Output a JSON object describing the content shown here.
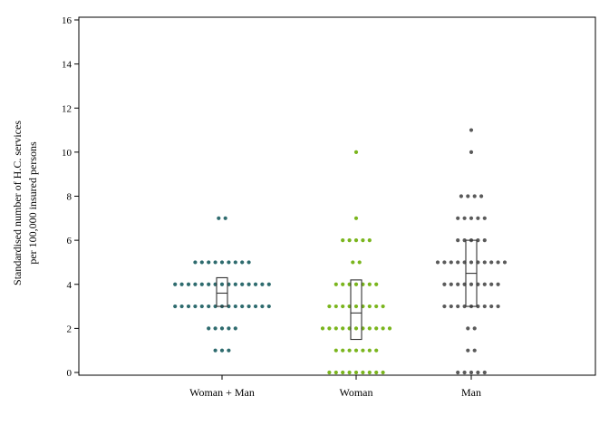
{
  "chart_data": {
    "type": "scatter",
    "subtype": "dot-plot-with-boxplot",
    "title": "",
    "ylabel_lines": [
      "Standardised number of H.C. services",
      "per 100,000 insured persons"
    ],
    "xlabel": "",
    "ylim": [
      0,
      16
    ],
    "yticks": [
      0,
      2,
      4,
      6,
      8,
      10,
      12,
      14,
      16
    ],
    "grid": false,
    "categories": [
      "Woman + Man",
      "Woman",
      "Man"
    ],
    "series": [
      {
        "category": "Woman + Man",
        "color": "#2e6b6e",
        "box": {
          "q1": 3.0,
          "median": 3.6,
          "q3": 4.3
        },
        "dots": [
          {
            "value": 1,
            "count": 3
          },
          {
            "value": 2,
            "count": 5
          },
          {
            "value": 3,
            "count": 15
          },
          {
            "value": 4,
            "count": 15
          },
          {
            "value": 5,
            "count": 9
          },
          {
            "value": 7,
            "count": 2
          }
        ]
      },
      {
        "category": "Woman",
        "color": "#7ab51d",
        "box": {
          "q1": 1.5,
          "median": 2.7,
          "q3": 4.2
        },
        "dots": [
          {
            "value": 0,
            "count": 9
          },
          {
            "value": 1,
            "count": 7
          },
          {
            "value": 2,
            "count": 11
          },
          {
            "value": 3,
            "count": 9
          },
          {
            "value": 4,
            "count": 7
          },
          {
            "value": 5,
            "count": 2
          },
          {
            "value": 6,
            "count": 5
          },
          {
            "value": 7,
            "count": 1
          },
          {
            "value": 10,
            "count": 1
          }
        ]
      },
      {
        "category": "Man",
        "color": "#5a5a5a",
        "box": {
          "q1": 3.0,
          "median": 4.5,
          "q3": 6.0
        },
        "dots": [
          {
            "value": 0,
            "count": 5
          },
          {
            "value": 1,
            "count": 2
          },
          {
            "value": 2,
            "count": 2
          },
          {
            "value": 3,
            "count": 9
          },
          {
            "value": 4,
            "count": 9
          },
          {
            "value": 5,
            "count": 11
          },
          {
            "value": 6,
            "count": 5
          },
          {
            "value": 7,
            "count": 5
          },
          {
            "value": 8,
            "count": 4
          },
          {
            "value": 10,
            "count": 1
          },
          {
            "value": 11,
            "count": 1
          }
        ]
      }
    ]
  }
}
